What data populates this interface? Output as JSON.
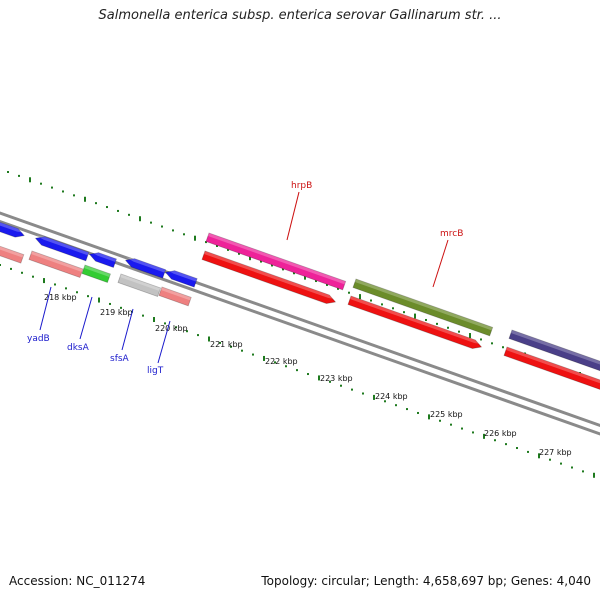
{
  "title": "Salmonella enterica subsp. enterica serovar Gallinarum str. ...",
  "footer": {
    "accession": "Accession: NC_011274",
    "summary": "Topology: circular; Length: 4,658,697 bp; Genes: 4,040"
  },
  "colors": {
    "backbone": "#8a8a8a",
    "tick": "#1e7a1e",
    "blue_gene": "#1a1aee",
    "pink_gene": "#ee8080",
    "green_gene": "#33cc33",
    "grey_gene": "#c2c2c2",
    "magenta_gene": "#ee2299",
    "red_gene": "#ee1111",
    "olive_gene": "#6b8c2a",
    "purple_gene": "#4a3f88",
    "label_blue": "#1a1acc",
    "label_red": "#cc1111"
  },
  "kbp_labels": [
    "218 kbp",
    "219 kbp",
    "220 kbp",
    "221 kbp",
    "222 kbp",
    "223 kbp",
    "224 kbp",
    "225 kbp",
    "226 kbp",
    "227 kbp"
  ],
  "gene_labels": [
    {
      "name": "yadB",
      "color": "label_blue"
    },
    {
      "name": "dksA",
      "color": "label_blue"
    },
    {
      "name": "sfsA",
      "color": "label_blue"
    },
    {
      "name": "ligT",
      "color": "label_blue"
    },
    {
      "name": "hrpB",
      "color": "label_red"
    },
    {
      "name": "mrcB",
      "color": "label_red"
    }
  ]
}
